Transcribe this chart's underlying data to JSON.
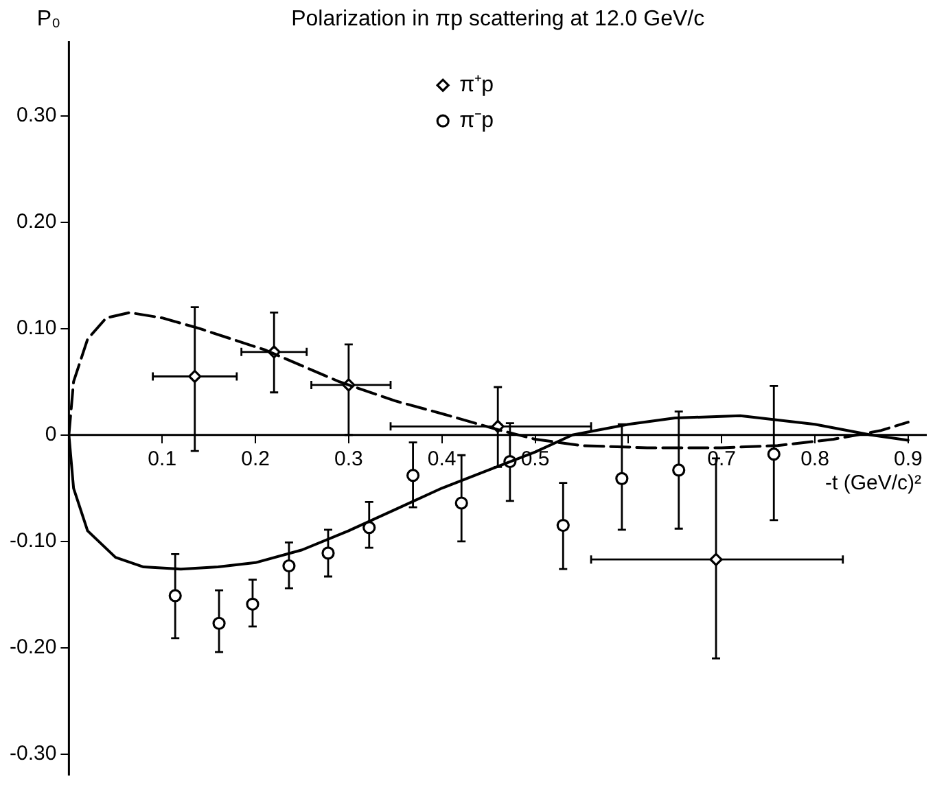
{
  "chart_data": {
    "type": "scatter",
    "title": "Polarization in πp scattering at 12.0 GeV/c",
    "xlabel": "-t (GeV/c)²",
    "ylabel": "P₀",
    "xlim": [
      0,
      0.92
    ],
    "xticks": [
      {
        "value": 0.1,
        "label": "0.1"
      },
      {
        "value": 0.2,
        "label": "0.2"
      },
      {
        "value": 0.3,
        "label": "0.3"
      },
      {
        "value": 0.4,
        "label": "0.4"
      },
      {
        "value": 0.5,
        "label": "0.5"
      },
      {
        "value": 0.6,
        "label": null
      },
      {
        "value": 0.7,
        "label": "0.7"
      },
      {
        "value": 0.8,
        "label": "0.8"
      },
      {
        "value": 0.9,
        "label": "0.9"
      }
    ],
    "ylim": [
      -0.32,
      0.37
    ],
    "yticks": [
      {
        "value": -0.3,
        "label": "-0.30"
      },
      {
        "value": -0.2,
        "label": "-0.20"
      },
      {
        "value": -0.1,
        "label": "-0.10"
      },
      0,
      {
        "value": 0.1,
        "label": "0.10"
      },
      {
        "value": 0.2,
        "label": "0.20"
      },
      {
        "value": 0.3,
        "label": "0.30"
      }
    ],
    "grid": false,
    "legend": "top",
    "series": [
      {
        "name": "π⁺p",
        "color": "#000000",
        "marker": "diamond",
        "x": [
          0.135,
          0.22,
          0.3,
          0.46,
          0.694
        ],
        "values": [
          0.055,
          0.078,
          0.047,
          0.008,
          -0.117
        ],
        "errors": [
          [
            -0.015,
            0.12
          ],
          [
            0.04,
            0.115
          ],
          [
            0.0,
            0.085
          ],
          [
            -0.03,
            0.045
          ],
          [
            -0.21,
            -0.022
          ]
        ],
        "xerrors": [
          [
            0.09,
            0.18
          ],
          [
            0.185,
            0.255
          ],
          [
            0.26,
            0.345
          ],
          [
            0.345,
            0.56
          ],
          [
            0.56,
            0.83
          ]
        ]
      },
      {
        "name": "π⁻p",
        "color": "#000000",
        "marker": "circle",
        "x": [
          0.114,
          0.161,
          0.197,
          0.236,
          0.278,
          0.322,
          0.369,
          0.421,
          0.473,
          0.53,
          0.593,
          0.654,
          0.756
        ],
        "values": [
          -0.151,
          -0.177,
          -0.159,
          -0.123,
          -0.111,
          -0.087,
          -0.038,
          -0.064,
          -0.025,
          -0.085,
          -0.041,
          -0.033,
          -0.018
        ],
        "errors": [
          [
            -0.191,
            -0.112
          ],
          [
            -0.204,
            -0.146
          ],
          [
            -0.18,
            -0.136
          ],
          [
            -0.144,
            -0.101
          ],
          [
            -0.133,
            -0.089
          ],
          [
            -0.106,
            -0.063
          ],
          [
            -0.068,
            -0.007
          ],
          [
            -0.1,
            -0.019
          ],
          [
            -0.062,
            0.011
          ],
          [
            -0.126,
            -0.045
          ],
          [
            -0.089,
            0.01
          ],
          [
            -0.088,
            0.022
          ],
          [
            -0.08,
            0.046
          ]
        ]
      },
      {
        "type": "line",
        "color": "#000000",
        "marker": "none",
        "line_style": "dashed",
        "x": [
          0,
          0.005,
          0.02,
          0.04,
          0.065,
          0.1,
          0.14,
          0.21,
          0.29,
          0.35,
          0.4,
          0.46,
          0.5,
          0.55,
          0.62,
          0.7,
          0.76,
          0.82,
          0.87,
          0.9
        ],
        "values": [
          0,
          0.05,
          0.09,
          0.11,
          0.115,
          0.11,
          0.1,
          0.08,
          0.05,
          0.032,
          0.02,
          0.005,
          -0.004,
          -0.01,
          -0.012,
          -0.012,
          -0.01,
          -0.004,
          0.004,
          0.012
        ]
      },
      {
        "type": "line",
        "color": "#000000",
        "marker": "none",
        "x": [
          0,
          0.005,
          0.02,
          0.05,
          0.08,
          0.12,
          0.16,
          0.2,
          0.25,
          0.3,
          0.35,
          0.4,
          0.45,
          0.5,
          0.54,
          0.6,
          0.65,
          0.72,
          0.8,
          0.86,
          0.9
        ],
        "values": [
          0,
          -0.05,
          -0.09,
          -0.115,
          -0.124,
          -0.126,
          -0.124,
          -0.12,
          -0.108,
          -0.09,
          -0.07,
          -0.05,
          -0.033,
          -0.016,
          0,
          0.01,
          0.016,
          0.018,
          0.01,
          0,
          -0.005
        ]
      }
    ]
  }
}
